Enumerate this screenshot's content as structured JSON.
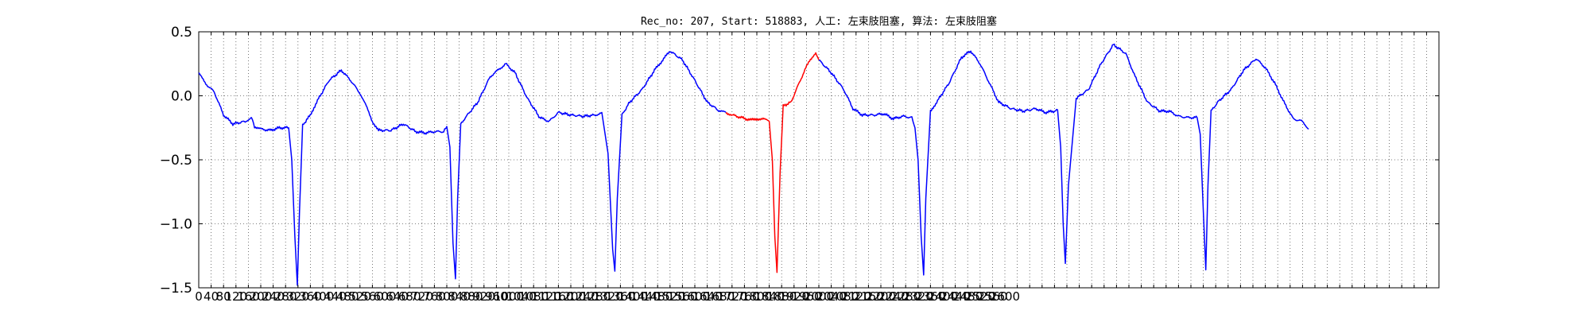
{
  "chart_data": {
    "type": "line",
    "title": "Rec_no: 207, Start: 518883, 人工: 左束肢阻塞, 算法: 左束肢阻塞",
    "xlabel": "",
    "ylabel": "",
    "xlim": [
      0,
      4000
    ],
    "ylim": [
      -1.5,
      0.5
    ],
    "grid": true,
    "y_ticks": [
      0.5,
      0.0,
      -0.5,
      -1.0,
      -1.5
    ],
    "y_tick_labels": [
      "0.5",
      "0.0",
      "−0.5",
      "−1.0",
      "−1.5"
    ],
    "x_tick_step": 40,
    "x_tick_label_step": 40,
    "series": [
      {
        "color": "#0000ff",
        "x": [
          0,
          20,
          50,
          80,
          110,
          150,
          170,
          180,
          200,
          230,
          260,
          290,
          300,
          310,
          318,
          325,
          335,
          345,
          360,
          380,
          420,
          460,
          490,
          520,
          540,
          560,
          580,
          620,
          660,
          700,
          730,
          760,
          790,
          800,
          810,
          820,
          828,
          835,
          845,
          860,
          900,
          940,
          990,
          1020,
          1060,
          1100,
          1130,
          1160,
          1200,
          1240,
          1280,
          1300,
          1320,
          1335,
          1342,
          1350,
          1365,
          1390,
          1430,
          1470,
          1520,
          1560,
          1600,
          1640,
          1680,
          1700
        ],
        "y": [
          0.18,
          0.1,
          0.03,
          -0.15,
          -0.22,
          -0.2,
          -0.17,
          -0.24,
          -0.26,
          -0.27,
          -0.25,
          -0.25,
          -0.5,
          -1.1,
          -1.48,
          -0.9,
          -0.23,
          -0.2,
          -0.15,
          -0.05,
          0.12,
          0.2,
          0.12,
          0.02,
          -0.08,
          -0.2,
          -0.27,
          -0.27,
          -0.22,
          -0.28,
          -0.29,
          -0.28,
          -0.28,
          -0.24,
          -0.4,
          -1.15,
          -1.43,
          -0.8,
          -0.22,
          -0.17,
          -0.05,
          0.15,
          0.25,
          0.18,
          -0.02,
          -0.17,
          -0.2,
          -0.13,
          -0.15,
          -0.16,
          -0.15,
          -0.13,
          -0.45,
          -1.2,
          -1.37,
          -0.8,
          -0.15,
          -0.05,
          0.05,
          0.2,
          0.35,
          0.28,
          0.12,
          -0.05,
          -0.12,
          -0.13
        ]
      },
      {
        "color": "#ff0000",
        "x": [
          1700,
          1720,
          1750,
          1780,
          1800,
          1820,
          1840,
          1850,
          1858,
          1865,
          1875,
          1885,
          1910,
          1940,
          1970,
          1990,
          2000
        ],
        "y": [
          -0.13,
          -0.15,
          -0.17,
          -0.19,
          -0.18,
          -0.18,
          -0.2,
          -0.5,
          -1.1,
          -1.38,
          -0.6,
          -0.08,
          -0.05,
          0.12,
          0.28,
          0.33,
          0.28
        ]
      },
      {
        "color": "#0000ff",
        "x": [
          2000,
          2040,
          2080,
          2110,
          2140,
          2180,
          2210,
          2240,
          2270,
          2300,
          2310,
          2320,
          2330,
          2338,
          2345,
          2360,
          2380,
          2420,
          2460,
          2490,
          2520,
          2550,
          2580,
          2620,
          2660,
          2700,
          2730,
          2760,
          2770,
          2780,
          2788,
          2795,
          2805,
          2830,
          2870,
          2910,
          2950,
          2990,
          3020,
          3060,
          3100,
          3130,
          3160,
          3190,
          3220,
          3230,
          3240,
          3248,
          3255,
          3265,
          3290,
          3330,
          3370,
          3410,
          3440,
          3470,
          3500,
          3530,
          3560,
          3580
        ],
        "y": [
          0.28,
          0.18,
          0.05,
          -0.1,
          -0.15,
          -0.15,
          -0.14,
          -0.18,
          -0.16,
          -0.17,
          -0.25,
          -0.5,
          -1.1,
          -1.4,
          -0.8,
          -0.12,
          -0.05,
          0.1,
          0.3,
          0.35,
          0.25,
          0.1,
          -0.05,
          -0.1,
          -0.12,
          -0.1,
          -0.13,
          -0.12,
          -0.11,
          -0.4,
          -1.0,
          -1.31,
          -0.7,
          -0.02,
          0.05,
          0.25,
          0.4,
          0.33,
          0.15,
          -0.05,
          -0.12,
          -0.12,
          -0.16,
          -0.17,
          -0.17,
          -0.3,
          -0.9,
          -1.36,
          -0.7,
          -0.12,
          -0.04,
          0.05,
          0.2,
          0.29,
          0.22,
          0.1,
          -0.05,
          -0.18,
          -0.2,
          -0.26
        ]
      }
    ]
  }
}
